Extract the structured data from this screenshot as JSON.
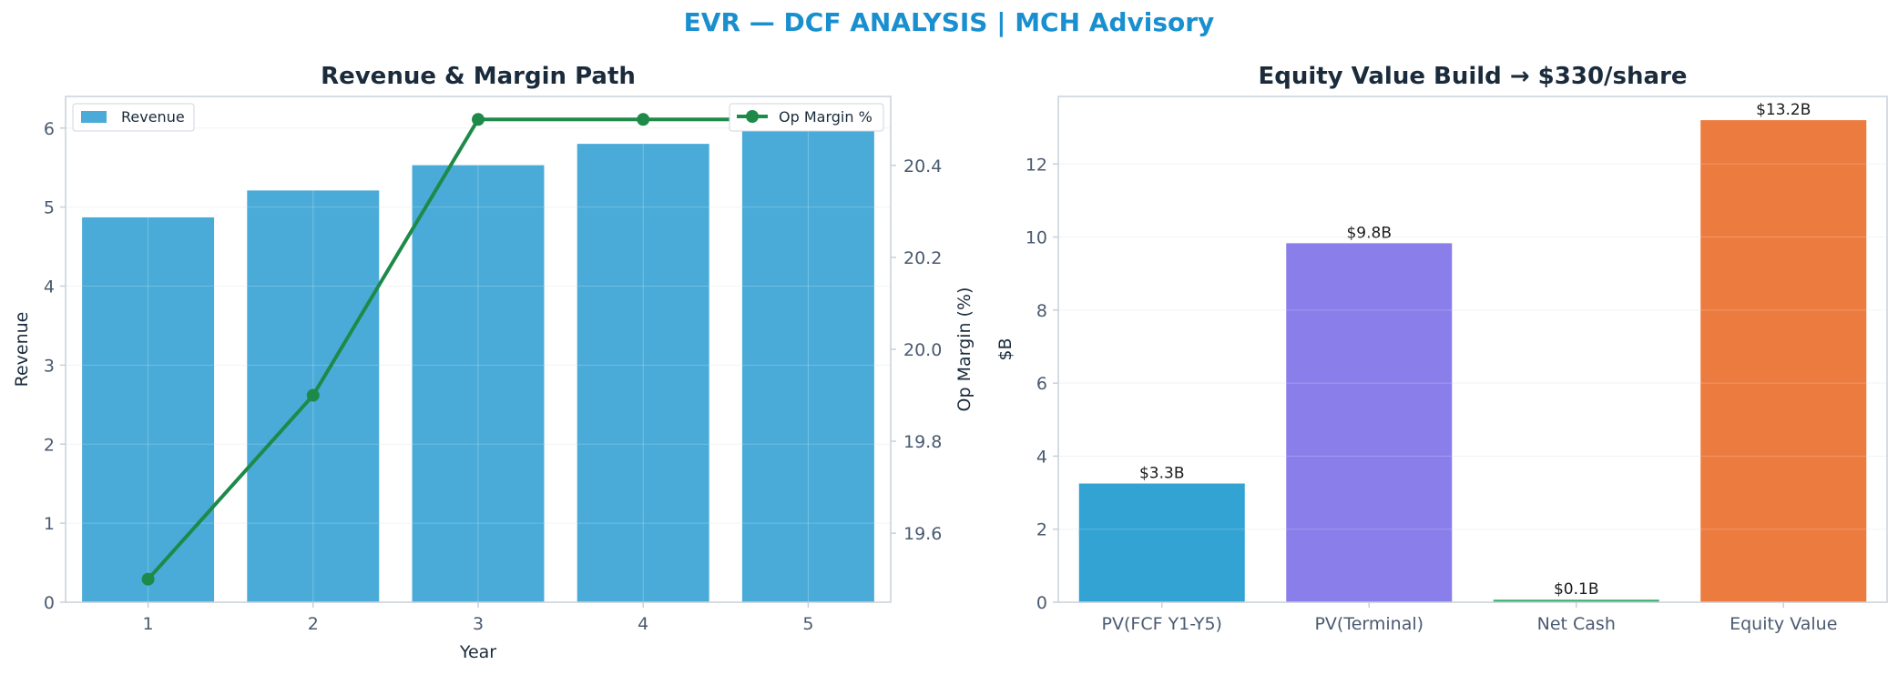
{
  "figure": {
    "suptitle": "EVR — DCF ANALYSIS | MCH Advisory",
    "colors": {
      "suptitle": "#1a8fcf",
      "title": "#1a2b3c",
      "axis_text": "#4a5a70",
      "spine": "#c8d0da",
      "grid": "#eef1f5"
    }
  },
  "chart_data": [
    {
      "type": "bar",
      "title": "Revenue & Margin Path",
      "xlabel": "Year",
      "ylabel": "Revenue",
      "y2label": "Op Margin (%)",
      "categories": [
        "1",
        "2",
        "3",
        "4",
        "5"
      ],
      "series": [
        {
          "name": "Revenue",
          "type": "bar",
          "axis": "left",
          "values": [
            4.87,
            5.21,
            5.53,
            5.8,
            6.09
          ],
          "color": "#4aabd8"
        },
        {
          "name": "Op Margin %",
          "type": "line",
          "axis": "right",
          "values": [
            19.5,
            19.9,
            20.5,
            20.5,
            20.5
          ],
          "color": "#1e8a4a"
        }
      ],
      "ylim": [
        0,
        6.4
      ],
      "yticks": [
        "0",
        "1",
        "2",
        "3",
        "4",
        "5",
        "6"
      ],
      "y2lim": [
        19.45,
        20.55
      ],
      "y2ticks": [
        "19.6",
        "19.8",
        "20.0",
        "20.2",
        "20.4"
      ],
      "grid": true,
      "legend": [
        {
          "label": "Revenue",
          "placement": "top-left"
        },
        {
          "label": "Op Margin %",
          "placement": "top-right"
        }
      ]
    },
    {
      "type": "bar",
      "title": "Equity Value Build → $330/share",
      "xlabel": "",
      "ylabel": "$B",
      "categories": [
        "PV(FCF Y1-Y5)",
        "PV(Terminal)",
        "Net Cash",
        "Equity Value"
      ],
      "values": [
        3.25,
        9.83,
        0.07,
        13.2
      ],
      "data_labels": [
        "$3.3B",
        "$9.8B",
        "$0.1B",
        "$13.2B"
      ],
      "colors": [
        "#33a3d4",
        "#8a7eea",
        "#3fae6f",
        "#ec7b3f"
      ],
      "ylim": [
        0,
        13.85
      ],
      "yticks": [
        "0",
        "2",
        "4",
        "6",
        "8",
        "10",
        "12"
      ],
      "grid": true
    }
  ]
}
